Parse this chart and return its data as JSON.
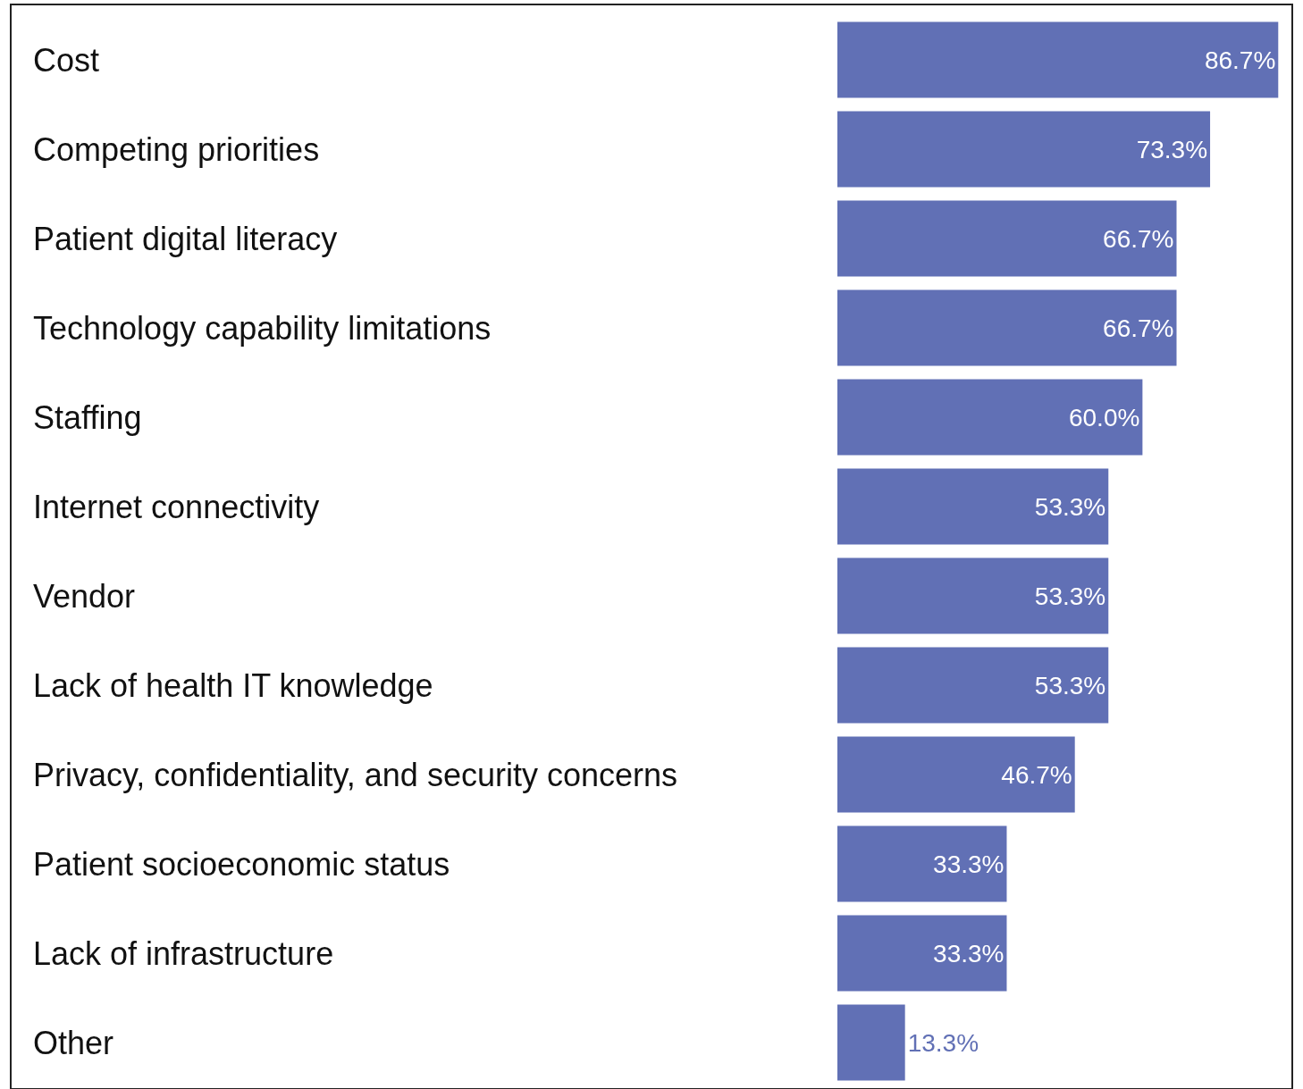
{
  "chart_data": {
    "type": "bar",
    "orientation": "horizontal",
    "categories": [
      "Cost",
      "Competing priorities",
      "Patient digital literacy",
      "Technology capability limitations",
      "Staffing",
      "Internet connectivity",
      "Vendor",
      "Lack of health IT knowledge",
      "Privacy, confidentiality, and security concerns",
      "Patient socioeconomic status",
      "Lack of infrastructure",
      "Other"
    ],
    "values": [
      86.7,
      73.3,
      66.7,
      66.7,
      60.0,
      53.3,
      53.3,
      53.3,
      46.7,
      33.3,
      33.3,
      13.3
    ],
    "value_labels": [
      "86.7%",
      "73.3%",
      "66.7%",
      "66.7%",
      "60.0%",
      "53.3%",
      "53.3%",
      "53.3%",
      "46.7%",
      "33.3%",
      "33.3%",
      "13.3%"
    ],
    "color": "#6170b5",
    "xlim": [
      0,
      87
    ],
    "tick_labels": "y",
    "legend": false
  }
}
